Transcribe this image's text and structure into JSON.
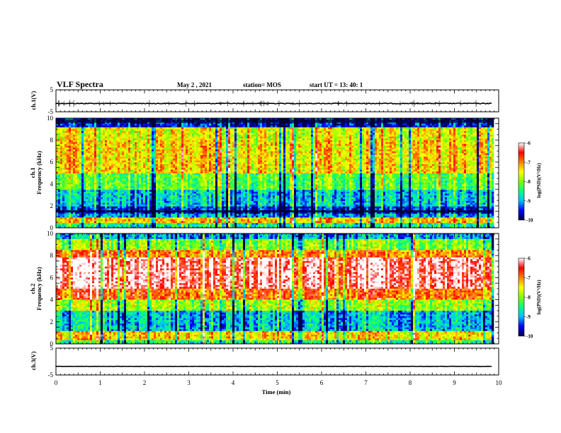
{
  "header": {
    "title": "VLF Spectra",
    "date": "May 2  , 2021",
    "station": "station= MOS",
    "start_time": "start  UT  =   13: 40: 1"
  },
  "chart_data": [
    {
      "type": "line",
      "name": "channel-1-voltage",
      "ylabel": "ch.1(V)",
      "ylim": [
        -5,
        5
      ],
      "yticks": [
        "5",
        "-5"
      ],
      "level": -1.2
    },
    {
      "type": "heatmap",
      "name": "channel-1-spectrogram",
      "ylabel_line1": "ch.1",
      "ylabel_line2": "Frequency (kHz)",
      "ylim": [
        0,
        10
      ],
      "yticks": [
        "0",
        "2",
        "4",
        "6",
        "8",
        "10"
      ],
      "colorbar": {
        "label": "log(PSD)(V²/Hz)",
        "range": [
          -10,
          -6
        ],
        "ticks": [
          "-6",
          "-7",
          "-8",
          "-9",
          "-10"
        ],
        "colors": [
          "#000040",
          "#0000ff",
          "#00c0ff",
          "#00ff80",
          "#80ff00",
          "#ffff00",
          "#ff8000",
          "#ff0000",
          "#ffffff"
        ]
      },
      "bands": [
        {
          "from": 9.2,
          "to": 10.0,
          "level": -9.6
        },
        {
          "from": 8.0,
          "to": 9.2,
          "level": -7.6
        },
        {
          "from": 5.0,
          "to": 8.0,
          "level": -7.4
        },
        {
          "from": 3.5,
          "to": 5.0,
          "level": -8.2
        },
        {
          "from": 2.0,
          "to": 3.5,
          "level": -8.9
        },
        {
          "from": 1.3,
          "to": 2.0,
          "level": -9.5
        },
        {
          "from": 0.9,
          "to": 1.3,
          "level": -9.1
        },
        {
          "from": 0.4,
          "to": 0.9,
          "level": -7.3
        },
        {
          "from": 0.0,
          "to": 0.4,
          "level": -8.6
        }
      ]
    },
    {
      "type": "heatmap",
      "name": "channel-2-spectrogram",
      "ylabel_line1": "ch.2",
      "ylabel_line2": "Frequency (kHz)",
      "ylim": [
        0,
        10
      ],
      "yticks": [
        "0",
        "2",
        "4",
        "6",
        "8",
        "10"
      ],
      "colorbar": {
        "label": "log(PSD)(V²/Hz)",
        "range": [
          -10,
          -6
        ],
        "ticks": [
          "-6",
          "-7",
          "-8",
          "-9",
          "-10"
        ],
        "colors": [
          "#000040",
          "#0000ff",
          "#00c0ff",
          "#00ff80",
          "#80ff00",
          "#ffff00",
          "#ff8000",
          "#ff0000",
          "#ffffff"
        ]
      },
      "bands": [
        {
          "from": 9.5,
          "to": 10.0,
          "level": -9.0
        },
        {
          "from": 8.5,
          "to": 9.5,
          "level": -8.0
        },
        {
          "from": 7.8,
          "to": 8.5,
          "level": -7.0
        },
        {
          "from": 5.0,
          "to": 7.8,
          "level": -6.2
        },
        {
          "from": 4.0,
          "to": 5.0,
          "level": -6.9
        },
        {
          "from": 3.0,
          "to": 4.0,
          "level": -7.9
        },
        {
          "from": 1.2,
          "to": 3.0,
          "level": -8.9
        },
        {
          "from": 0.4,
          "to": 1.2,
          "level": -7.4
        },
        {
          "from": 0.0,
          "to": 0.4,
          "level": -8.4
        }
      ]
    },
    {
      "type": "line",
      "name": "channel-3-voltage",
      "ylabel": "ch.3(V)",
      "ylim": [
        -5,
        5
      ],
      "yticks": [
        "5",
        "-5"
      ],
      "level": -1.8
    }
  ],
  "time_axis": {
    "xlabel": "Time  (min)",
    "xlim": [
      0,
      10
    ],
    "ticks": [
      "0",
      "1",
      "2",
      "3",
      "4",
      "5",
      "6",
      "7",
      "8",
      "9",
      "10"
    ],
    "data_end": 9.85
  }
}
